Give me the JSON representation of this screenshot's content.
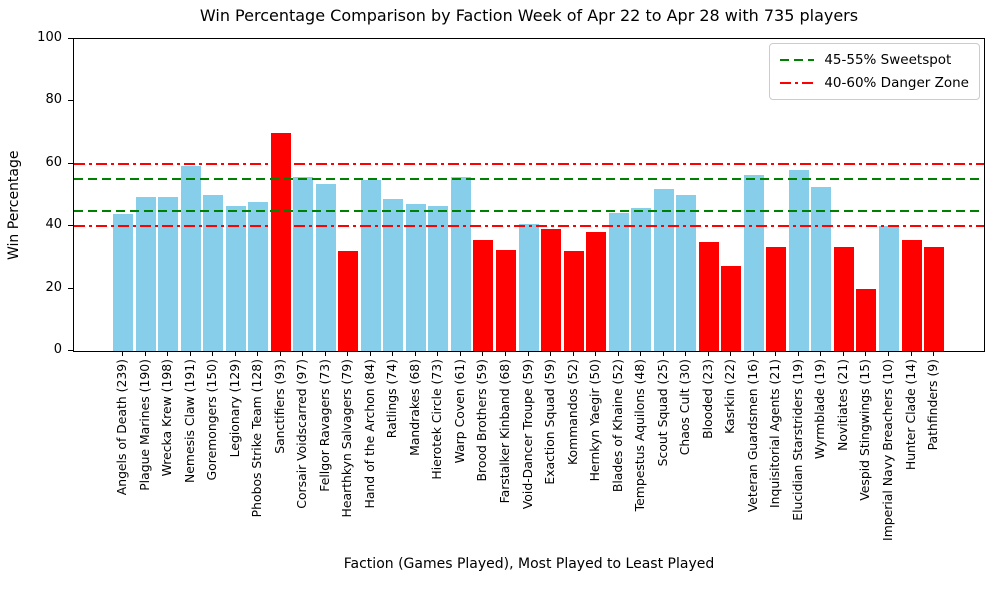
{
  "chart_data": {
    "type": "bar",
    "title": "Win Percentage Comparison by Faction Week of Apr 22 to Apr 28 with 735 players",
    "xlabel": "Faction (Games Played), Most Played to Least Played",
    "ylabel": "Win Percentage",
    "ylim": [
      0,
      100
    ],
    "yticks": [
      0,
      20,
      40,
      60,
      80,
      100
    ],
    "grid": false,
    "legend_position": "upper right",
    "bar_color_default": "#87ceeb",
    "bar_color_flagged": "#ff0000",
    "axis_color": "#000000",
    "reference_lines": [
      {
        "label": "45-55% Sweetspot",
        "color": "#008000",
        "style": "dashed",
        "values": [
          45,
          55
        ]
      },
      {
        "label": "40-60% Danger Zone",
        "color": "#ff0000",
        "style": "dashdot",
        "values": [
          40,
          60
        ]
      }
    ],
    "categories": [
      "Angels of Death (239)",
      "Plague Marines (190)",
      "Wrecka Krew (198)",
      "Nemesis Claw (191)",
      "Goremongers (150)",
      "Legionary (129)",
      "Phobos Strike Team (128)",
      "Sanctifiers (93)",
      "Corsair Voidscarred (97)",
      "Fellgor Ravagers (73)",
      "Hearthkyn Salvagers (79)",
      "Hand of the Archon (84)",
      "Ratlings (74)",
      "Mandrakes (68)",
      "Hierotek Circle (73)",
      "Warp Coven (61)",
      "Brood Brothers (59)",
      "Farstalker Kinband (68)",
      "Void-Dancer Troupe (59)",
      "Exaction Squad (59)",
      "Kommandos (52)",
      "Hernkyn Yaegir (50)",
      "Blades of Khaine (52)",
      "Tempestus Aquilons (48)",
      "Scout Squad (25)",
      "Chaos Cult (30)",
      "Blooded (23)",
      "Kasrkin (22)",
      "Veteran Guardsmen (16)",
      "Inquisitorial Agents (21)",
      "Elucidian Starstriders (19)",
      "Wyrmblade (19)",
      "Novitiates (21)",
      "Vespid Stingwings (15)",
      "Imperial Navy Breachers (10)",
      "Hunter Clade (14)",
      "Pathfinders (9)"
    ],
    "bars": [
      {
        "faction": "Angels of Death",
        "games": 239,
        "win_pct": 43.9,
        "flagged": false
      },
      {
        "faction": "Plague Marines",
        "games": 190,
        "win_pct": 49.5,
        "flagged": false
      },
      {
        "faction": "Wrecka Krew",
        "games": 198,
        "win_pct": 49.5,
        "flagged": false
      },
      {
        "faction": "Nemesis Claw",
        "games": 191,
        "win_pct": 59.2,
        "flagged": false
      },
      {
        "faction": "Goremongers",
        "games": 150,
        "win_pct": 50.0,
        "flagged": false
      },
      {
        "faction": "Legionary",
        "games": 129,
        "win_pct": 46.5,
        "flagged": false
      },
      {
        "faction": "Phobos Strike Team",
        "games": 128,
        "win_pct": 47.7,
        "flagged": false
      },
      {
        "faction": "Sanctifiers",
        "games": 93,
        "win_pct": 69.9,
        "flagged": true
      },
      {
        "faction": "Corsair Voidscarred",
        "games": 97,
        "win_pct": 55.7,
        "flagged": false
      },
      {
        "faction": "Fellgor Ravagers",
        "games": 73,
        "win_pct": 53.4,
        "flagged": false
      },
      {
        "faction": "Hearthkyn Salvagers",
        "games": 79,
        "win_pct": 32.0,
        "flagged": true
      },
      {
        "faction": "Hand of the Archon",
        "games": 84,
        "win_pct": 54.8,
        "flagged": false
      },
      {
        "faction": "Ratlings",
        "games": 74,
        "win_pct": 48.6,
        "flagged": false
      },
      {
        "faction": "Mandrakes",
        "games": 68,
        "win_pct": 47.1,
        "flagged": false
      },
      {
        "faction": "Hierotek Circle",
        "games": 73,
        "win_pct": 46.6,
        "flagged": false
      },
      {
        "faction": "Warp Coven",
        "games": 61,
        "win_pct": 55.7,
        "flagged": false
      },
      {
        "faction": "Brood Brothers",
        "games": 59,
        "win_pct": 35.6,
        "flagged": true
      },
      {
        "faction": "Farstalker Kinband",
        "games": 68,
        "win_pct": 32.4,
        "flagged": true
      },
      {
        "faction": "Void-Dancer Troupe",
        "games": 59,
        "win_pct": 40.7,
        "flagged": false
      },
      {
        "faction": "Exaction Squad",
        "games": 59,
        "win_pct": 39.0,
        "flagged": true
      },
      {
        "faction": "Kommandos",
        "games": 52,
        "win_pct": 32.0,
        "flagged": true
      },
      {
        "faction": "Hernkyn Yaegir",
        "games": 50,
        "win_pct": 38.0,
        "flagged": true
      },
      {
        "faction": "Blades of Khaine",
        "games": 52,
        "win_pct": 44.2,
        "flagged": false
      },
      {
        "faction": "Tempestus Aquilons",
        "games": 48,
        "win_pct": 45.8,
        "flagged": false
      },
      {
        "faction": "Scout Squad",
        "games": 25,
        "win_pct": 52.0,
        "flagged": false
      },
      {
        "faction": "Chaos Cult",
        "games": 30,
        "win_pct": 50.0,
        "flagged": false
      },
      {
        "faction": "Blooded",
        "games": 23,
        "win_pct": 34.8,
        "flagged": true
      },
      {
        "faction": "Kasrkin",
        "games": 22,
        "win_pct": 27.3,
        "flagged": true
      },
      {
        "faction": "Veteran Guardsmen",
        "games": 16,
        "win_pct": 56.3,
        "flagged": false
      },
      {
        "faction": "Inquisitorial Agents",
        "games": 21,
        "win_pct": 33.3,
        "flagged": true
      },
      {
        "faction": "Elucidian Starstriders",
        "games": 19,
        "win_pct": 57.9,
        "flagged": false
      },
      {
        "faction": "Wyrmblade",
        "games": 19,
        "win_pct": 52.6,
        "flagged": false
      },
      {
        "faction": "Novitiates",
        "games": 21,
        "win_pct": 33.3,
        "flagged": true
      },
      {
        "faction": "Vespid Stingwings",
        "games": 15,
        "win_pct": 20.0,
        "flagged": true
      },
      {
        "faction": "Imperial Navy Breachers",
        "games": 10,
        "win_pct": 40.0,
        "flagged": false
      },
      {
        "faction": "Hunter Clade",
        "games": 14,
        "win_pct": 35.7,
        "flagged": true
      },
      {
        "faction": "Pathfinders",
        "games": 9,
        "win_pct": 33.3,
        "flagged": true
      }
    ]
  }
}
